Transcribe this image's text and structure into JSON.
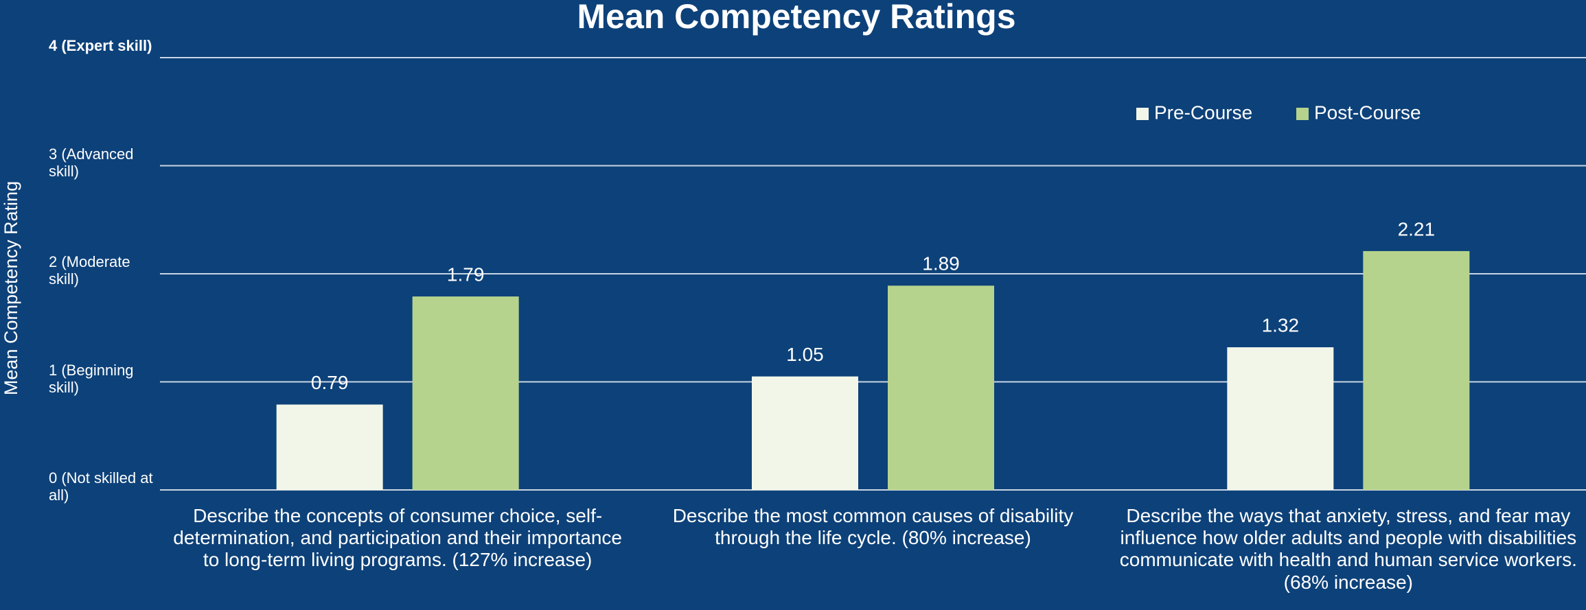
{
  "chart_data": {
    "type": "bar",
    "title": "Mean Competency Ratings",
    "ylabel": "Mean Competency Rating",
    "categories": [
      "Describe the concepts of consumer choice, self-determination, and participation and their importance to long-term living programs. (127% increase)",
      "Describe the most common causes of disability through the life cycle. (80% increase)",
      "Describe the ways that anxiety, stress, and fear may influence how older adults and people with disabilities communicate with health and human service workers. (68% increase)"
    ],
    "series": [
      {
        "name": "Pre-Course",
        "color": "#f1f6e8",
        "values": [
          0.79,
          1.05,
          1.32
        ]
      },
      {
        "name": "Post-Course",
        "color": "#b5d38c",
        "values": [
          1.79,
          1.89,
          2.21
        ]
      }
    ],
    "ylim": [
      0,
      4
    ],
    "yticks": [
      {
        "value": 0,
        "label": "0 (Not skilled at all)"
      },
      {
        "value": 1,
        "label": "1 (Beginning skill)"
      },
      {
        "value": 2,
        "label": "2 (Moderate skill)"
      },
      {
        "value": 3,
        "label": "3 (Advanced skill)"
      },
      {
        "value": 4,
        "label": "4 (Expert skill)"
      }
    ],
    "grid": true,
    "legend": "upper right"
  }
}
